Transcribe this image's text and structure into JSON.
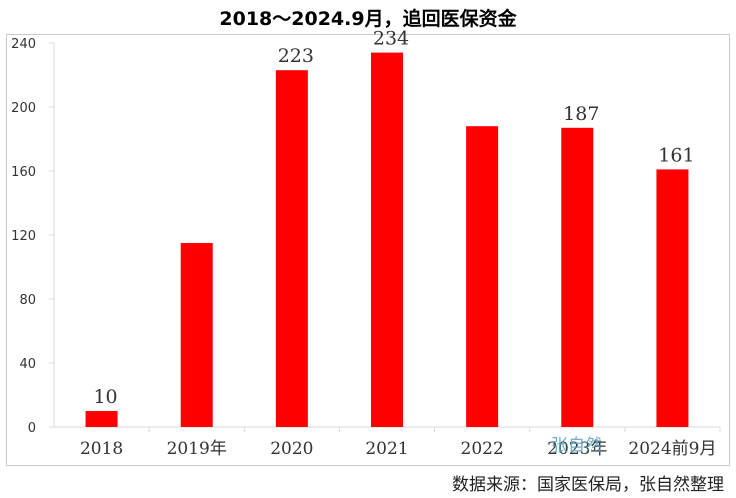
{
  "chart_data": {
    "type": "bar",
    "title": "2018～2024.9月，追回医保资金",
    "categories": [
      "2018",
      "2019年",
      "2020",
      "2021",
      "2022",
      "2023年",
      "2024前9月"
    ],
    "values": [
      10,
      115,
      223,
      234,
      188,
      187,
      161
    ],
    "data_labels": [
      "10",
      "",
      "223",
      "234",
      "",
      "187",
      "161"
    ],
    "yticks": [
      "0",
      "40",
      "80",
      "120",
      "160",
      "200",
      "240"
    ],
    "ylim": [
      0,
      240
    ],
    "xlabel": "",
    "ylabel": "",
    "grid": false,
    "bar_color": "#ff0000"
  },
  "watermark": "张自然",
  "source": "数据来源：国家医保局，张自然整理"
}
